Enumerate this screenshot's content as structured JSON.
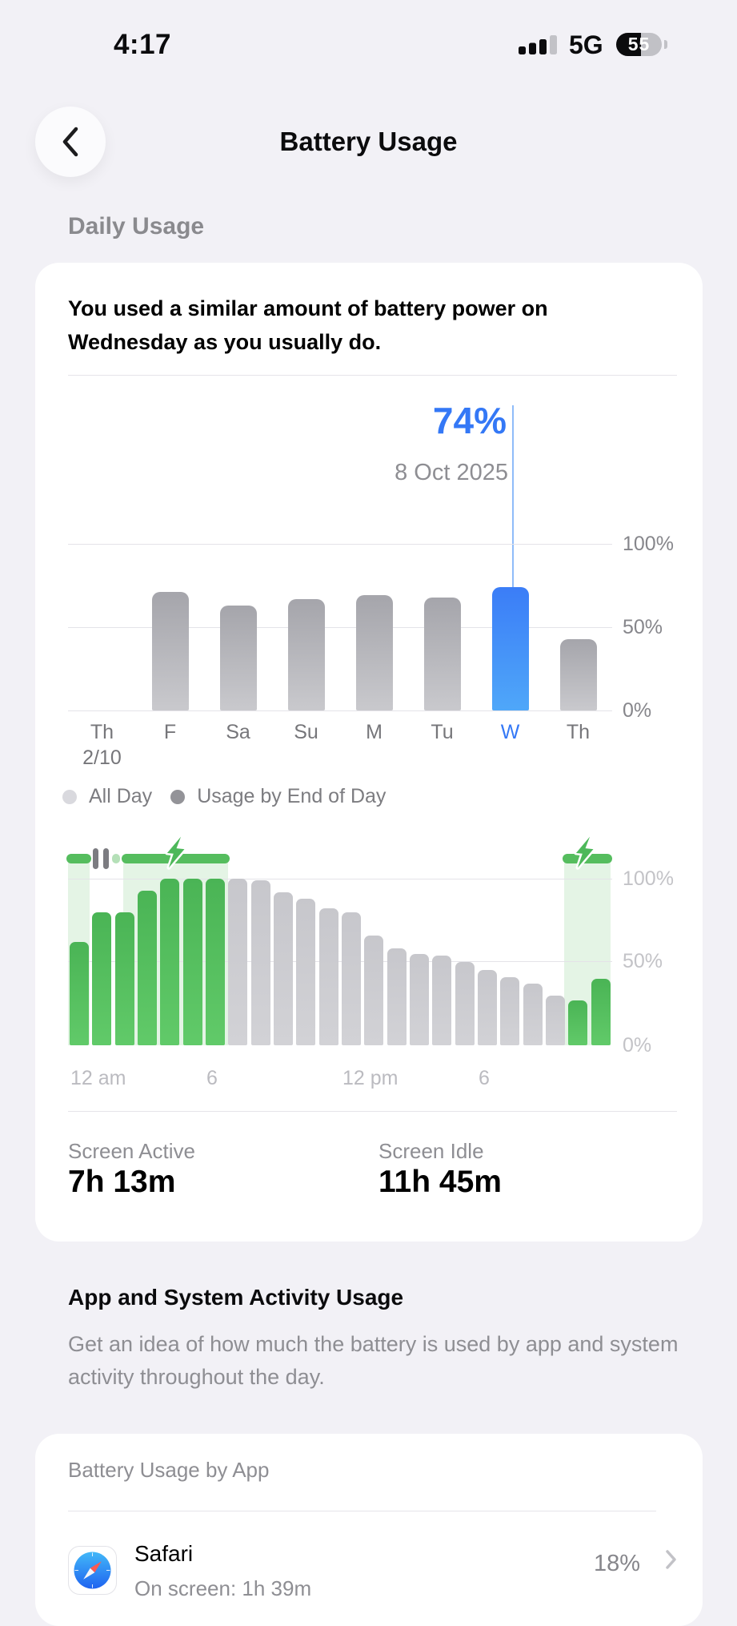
{
  "status_bar": {
    "time": "4:17",
    "network": "5G",
    "battery_percent": "55"
  },
  "nav": {
    "title": "Battery Usage",
    "back_icon": "chevron-left"
  },
  "section": {
    "daily_usage": "Daily Usage"
  },
  "summary_card": {
    "headline": "You used a similar amount of battery power on Wednesday as you usually do."
  },
  "legend": {
    "all_day": "All Day",
    "end_of_day": "Usage by End of Day",
    "all_day_color": "#D9D9DE",
    "end_of_day_color": "#939398"
  },
  "stats": {
    "screen_active_label": "Screen Active",
    "screen_active_value": "7h 13m",
    "screen_idle_label": "Screen Idle",
    "screen_idle_value": "11h 45m"
  },
  "activity_section": {
    "title": "App and System Activity Usage",
    "description": "Get an idea of how much the battery is used by app and system activity throughout the day."
  },
  "app_usage_card": {
    "title": "Battery Usage by App",
    "apps": [
      {
        "name": "Safari",
        "detail": "On screen: 1h 39m",
        "percent": "18%"
      }
    ]
  },
  "colors": {
    "accent_blue": "#3478F6",
    "charge_green": "#55BD5E",
    "background": "#F2F1F6"
  },
  "chart_data": [
    {
      "type": "bar",
      "title": "Daily battery usage by day",
      "callout": {
        "value": "74%",
        "date": "8 Oct 2025"
      },
      "categories": [
        "Th",
        "F",
        "Sa",
        "Su",
        "M",
        "Tu",
        "W",
        "Th"
      ],
      "sub_labels": [
        "2/10",
        "",
        "",
        "",
        "",
        "",
        "",
        ""
      ],
      "values": [
        null,
        71,
        63,
        67,
        69,
        68,
        74,
        43
      ],
      "selected_index": 6,
      "y_ticks": [
        {
          "label": "100%",
          "value": 100
        },
        {
          "label": "50%",
          "value": 50
        },
        {
          "label": "0%",
          "value": 0
        }
      ],
      "ylim": [
        0,
        100
      ],
      "unit": "%"
    },
    {
      "type": "bar",
      "title": "Battery level by hour",
      "values": [
        62,
        80,
        80,
        93,
        100,
        100,
        100,
        100,
        99,
        92,
        88,
        82,
        80,
        66,
        58,
        55,
        54,
        50,
        45,
        41,
        37,
        30,
        27,
        40
      ],
      "charging_bars": [
        true,
        true,
        true,
        true,
        true,
        true,
        true,
        false,
        false,
        false,
        false,
        false,
        false,
        false,
        false,
        false,
        false,
        false,
        false,
        false,
        false,
        false,
        true,
        true
      ],
      "charging_segments": [
        {
          "start": 0,
          "end": 0.95
        },
        {
          "start": 2.45,
          "end": 7.05
        },
        {
          "start": 21.9,
          "end": 23.95
        }
      ],
      "track_dots": [
        {
          "start": 1.95,
          "end": 2.3
        }
      ],
      "track_icons": [
        {
          "type": "pause",
          "hour": 1.45
        },
        {
          "type": "bolt",
          "hour": 4.73
        },
        {
          "type": "bolt",
          "hour": 22.77
        }
      ],
      "x_ticks": [
        {
          "label": "12 am",
          "hour": 0
        },
        {
          "label": "6",
          "hour": 6
        },
        {
          "label": "12 pm",
          "hour": 12
        },
        {
          "label": "6",
          "hour": 18
        }
      ],
      "y_ticks": [
        {
          "label": "100%",
          "value": 100
        },
        {
          "label": "50%",
          "value": 50
        },
        {
          "label": "0%",
          "value": 0
        }
      ],
      "ylim": [
        0,
        100
      ],
      "unit": "%"
    }
  ]
}
